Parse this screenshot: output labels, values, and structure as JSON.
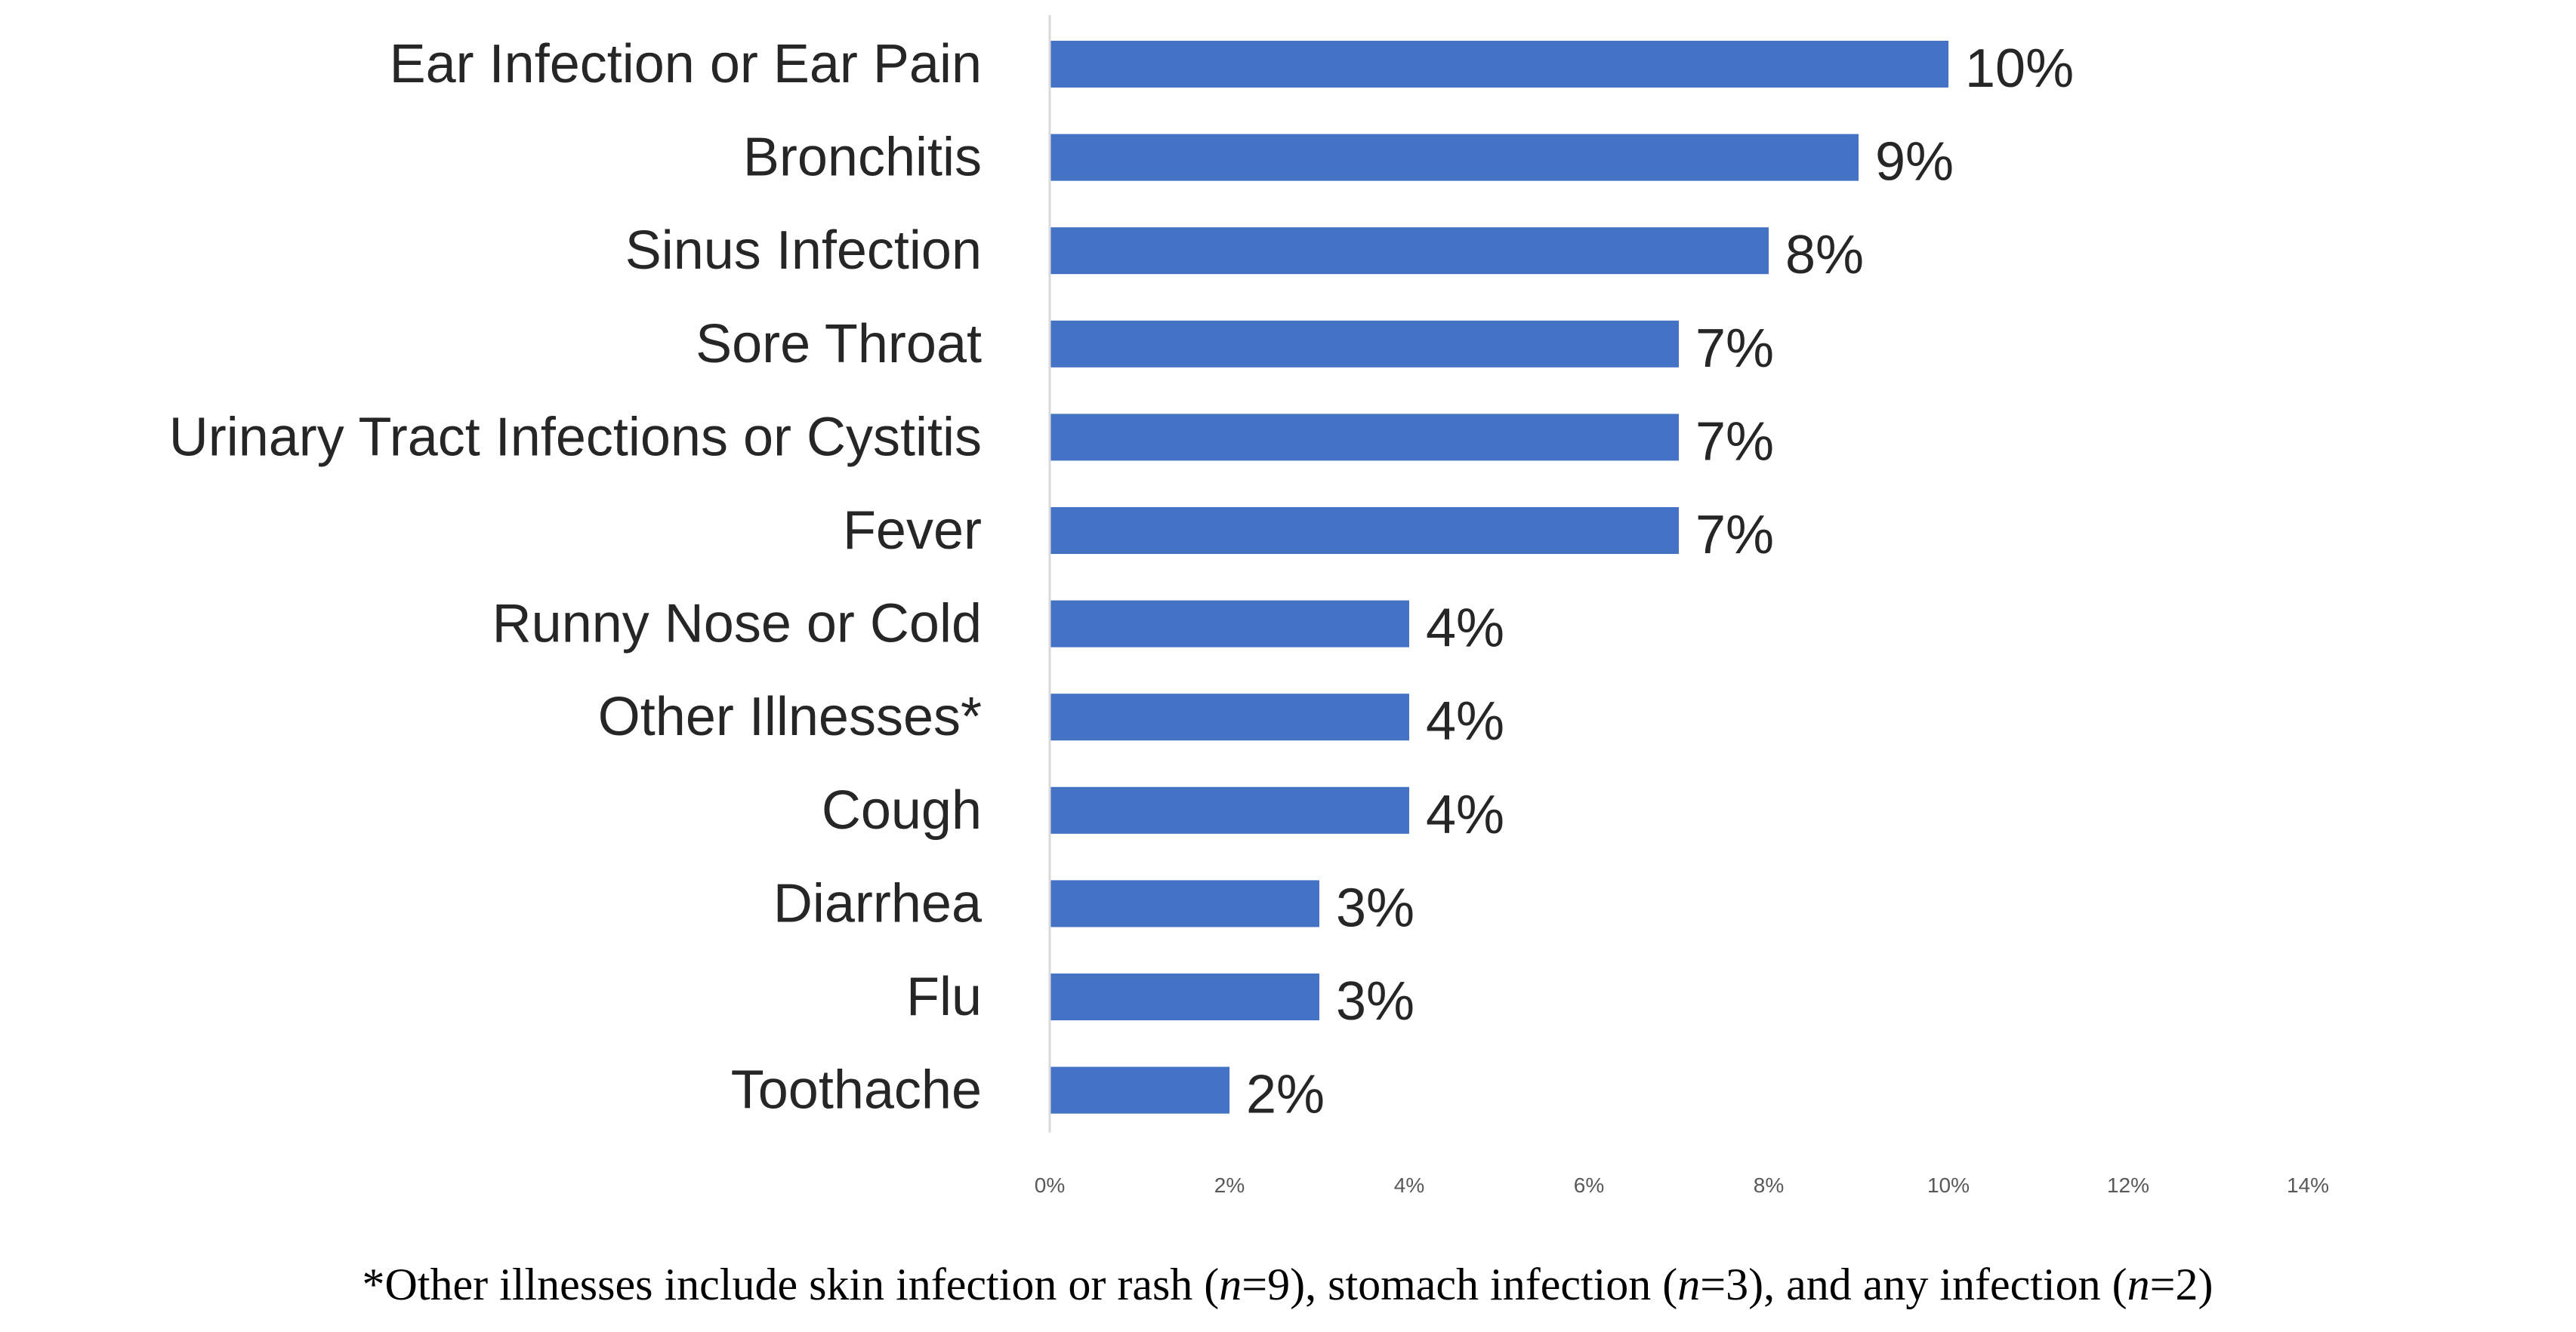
{
  "chart_data": {
    "type": "bar",
    "orientation": "horizontal",
    "categories": [
      "Ear Infection or Ear Pain",
      "Bronchitis",
      "Sinus Infection",
      "Sore Throat",
      "Urinary Tract Infections or Cystitis",
      "Fever",
      "Runny Nose or Cold",
      "Other Illnesses*",
      "Cough",
      "Diarrhea",
      "Flu",
      "Toothache"
    ],
    "values": [
      10,
      9,
      8,
      7,
      7,
      7,
      4,
      4,
      4,
      3,
      3,
      2
    ],
    "data_labels": [
      "10%",
      "9%",
      "8%",
      "7%",
      "7%",
      "7%",
      "4%",
      "4%",
      "4%",
      "3%",
      "3%",
      "2%"
    ],
    "xlim": [
      0,
      14
    ],
    "x_ticks": [
      "0%",
      "2%",
      "4%",
      "6%",
      "8%",
      "10%",
      "12%",
      "14%"
    ],
    "grid": false,
    "legend": "none",
    "bar_color": "#4472C4",
    "axis_line_color": "#D9D9D9"
  },
  "footnote": {
    "parts": [
      {
        "text": "*Other illnesses include skin infection or rash (",
        "italic": false
      },
      {
        "text": "n",
        "italic": true
      },
      {
        "text": "=9), stomach infection (",
        "italic": false
      },
      {
        "text": "n",
        "italic": true
      },
      {
        "text": "=3), and any infection (",
        "italic": false
      },
      {
        "text": "n",
        "italic": true
      },
      {
        "text": "=2)",
        "italic": false
      }
    ]
  }
}
